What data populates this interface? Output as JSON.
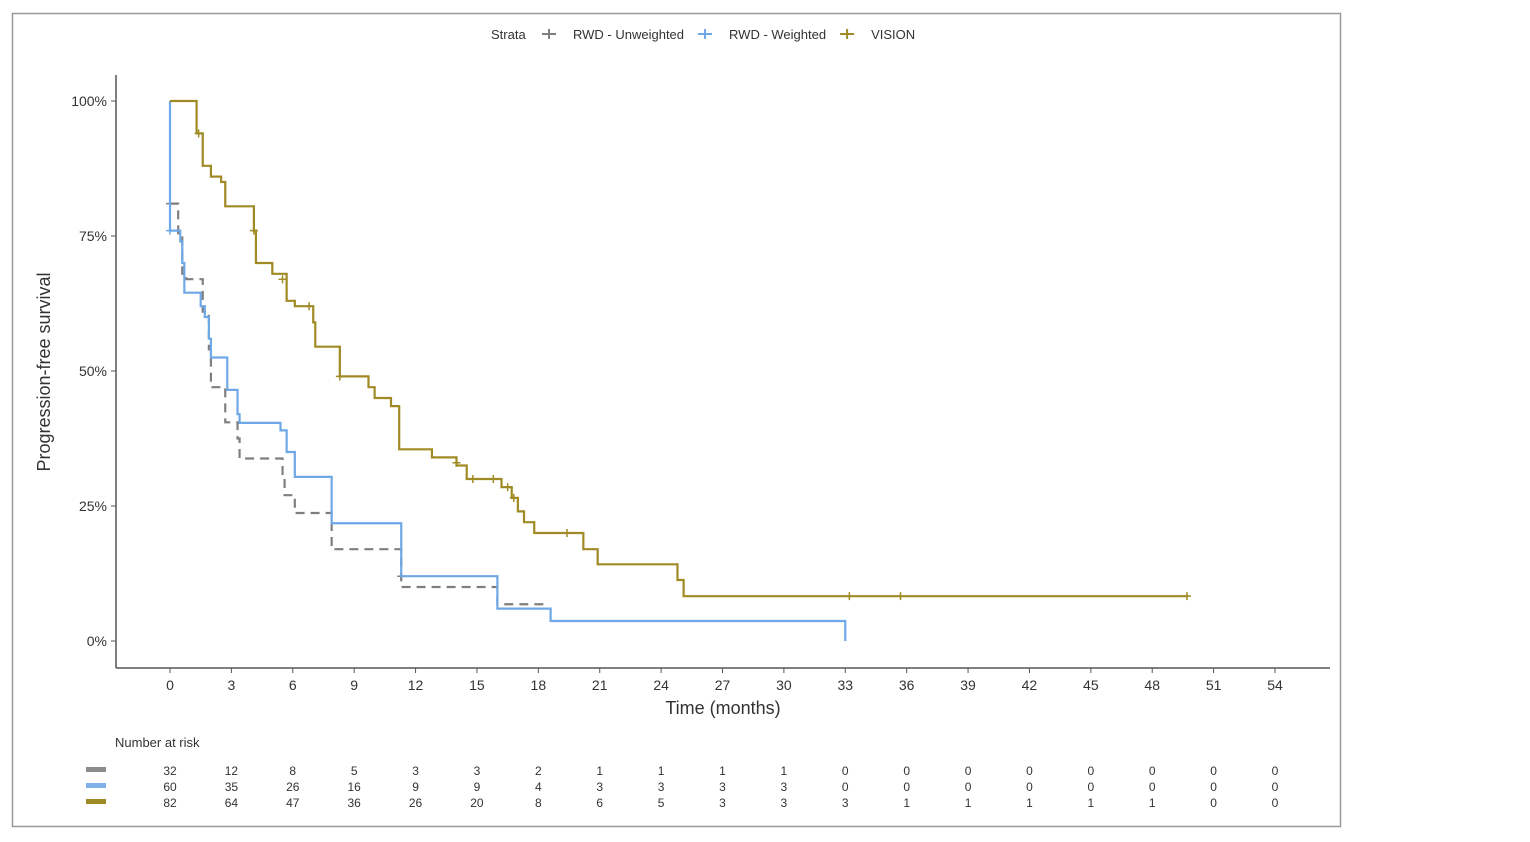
{
  "chart_data": {
    "type": "line",
    "subtype": "kaplan-meier step",
    "legend": {
      "title": "Strata",
      "placement": "top"
    },
    "xlabel": "Time (months)",
    "ylabel": "Progression-free survival",
    "xlim": [
      0,
      54
    ],
    "ylim": [
      0,
      100
    ],
    "xticks": [
      0,
      3,
      6,
      9,
      12,
      15,
      18,
      21,
      24,
      27,
      30,
      33,
      36,
      39,
      42,
      45,
      48,
      51,
      54
    ],
    "yticks": [
      0,
      25,
      50,
      75,
      100
    ],
    "ytick_labels": [
      "0%",
      "25%",
      "50%",
      "75%",
      "100%"
    ],
    "grid": false,
    "series": [
      {
        "name": "RWD - Unweighted",
        "color": "#7f7f7f",
        "dash": true,
        "steps": [
          [
            0,
            81
          ],
          [
            0.4,
            75
          ],
          [
            0.6,
            68
          ],
          [
            0.8,
            67
          ],
          [
            1.6,
            61
          ],
          [
            1.9,
            54
          ],
          [
            2.0,
            47
          ],
          [
            2.7,
            40.5
          ],
          [
            3.3,
            37.5
          ],
          [
            3.4,
            33.8
          ],
          [
            5.5,
            30
          ],
          [
            5.6,
            27
          ],
          [
            6.1,
            23.7
          ],
          [
            7.9,
            17
          ],
          [
            11.3,
            10
          ],
          [
            16.0,
            6.8
          ]
        ],
        "end": 18.3,
        "censors": [
          [
            0,
            81
          ],
          [
            11.3,
            12
          ]
        ]
      },
      {
        "name": "RWD - Weighted",
        "color": "#6fa8e6",
        "dash": false,
        "steps": [
          [
            0,
            100
          ],
          [
            0,
            76
          ],
          [
            0.5,
            74
          ],
          [
            0.6,
            70
          ],
          [
            0.7,
            64.5
          ],
          [
            1.5,
            62
          ],
          [
            1.7,
            60
          ],
          [
            1.9,
            56
          ],
          [
            2.0,
            52.5
          ],
          [
            2.8,
            46.5
          ],
          [
            3.3,
            42
          ],
          [
            3.4,
            40.4
          ],
          [
            5.4,
            39
          ],
          [
            5.7,
            35
          ],
          [
            6.1,
            30.4
          ],
          [
            7.9,
            21.8
          ],
          [
            11.3,
            12
          ],
          [
            16.0,
            6
          ],
          [
            18.6,
            3.7
          ],
          [
            33.0,
            0
          ]
        ],
        "end": 33.0,
        "censors": [
          [
            0,
            76
          ]
        ]
      },
      {
        "name": "VISION",
        "color": "#a08a24",
        "dash": false,
        "steps": [
          [
            0,
            100
          ],
          [
            1.3,
            94
          ],
          [
            1.6,
            88
          ],
          [
            2.0,
            86
          ],
          [
            2.5,
            85
          ],
          [
            2.7,
            80.5
          ],
          [
            4.1,
            76
          ],
          [
            4.2,
            70
          ],
          [
            5.0,
            68
          ],
          [
            5.7,
            63
          ],
          [
            6.1,
            62
          ],
          [
            7.0,
            59
          ],
          [
            7.1,
            54.5
          ],
          [
            8.3,
            49
          ],
          [
            9.7,
            47
          ],
          [
            10.0,
            45
          ],
          [
            10.8,
            43.5
          ],
          [
            11.2,
            35.5
          ],
          [
            12.8,
            34
          ],
          [
            14.0,
            32.5
          ],
          [
            14.5,
            30
          ],
          [
            16.2,
            28.5
          ],
          [
            16.7,
            26.5
          ],
          [
            17.0,
            24
          ],
          [
            17.3,
            22
          ],
          [
            17.8,
            20
          ],
          [
            20.2,
            17
          ],
          [
            20.9,
            14.2
          ],
          [
            24.8,
            11.3
          ],
          [
            25.1,
            8.3
          ]
        ],
        "end": 49.7,
        "censors": [
          [
            1.4,
            94
          ],
          [
            4.1,
            76
          ],
          [
            5.5,
            67
          ],
          [
            6.8,
            62
          ],
          [
            8.3,
            49
          ],
          [
            14.0,
            33
          ],
          [
            14.8,
            30
          ],
          [
            15.8,
            30
          ],
          [
            16.5,
            28.5
          ],
          [
            16.8,
            26.5
          ],
          [
            19.4,
            20
          ],
          [
            33.2,
            8.3
          ],
          [
            35.7,
            8.3
          ],
          [
            49.7,
            8.3
          ]
        ]
      }
    ],
    "risk_table": {
      "title": "Number at risk",
      "rows": [
        {
          "color": "#8c8c8c",
          "values": [
            "32",
            "12",
            "8",
            "5",
            "3",
            "3",
            "2",
            "1",
            "1",
            "1",
            "1",
            "0",
            "0",
            "0",
            "0",
            "0",
            "0",
            "0",
            "0"
          ]
        },
        {
          "color": "#7fb0e8",
          "values": [
            "60",
            "35",
            "26",
            "16",
            "9",
            "9",
            "4",
            "3",
            "3",
            "3",
            "3",
            "0",
            "0",
            "0",
            "0",
            "0",
            "0",
            "0",
            "0"
          ]
        },
        {
          "color": "#a08a24",
          "values": [
            "82",
            "64",
            "47",
            "36",
            "26",
            "20",
            "8",
            "6",
            "5",
            "3",
            "3",
            "3",
            "1",
            "1",
            "1",
            "1",
            "1",
            "0",
            "0"
          ]
        }
      ]
    }
  }
}
